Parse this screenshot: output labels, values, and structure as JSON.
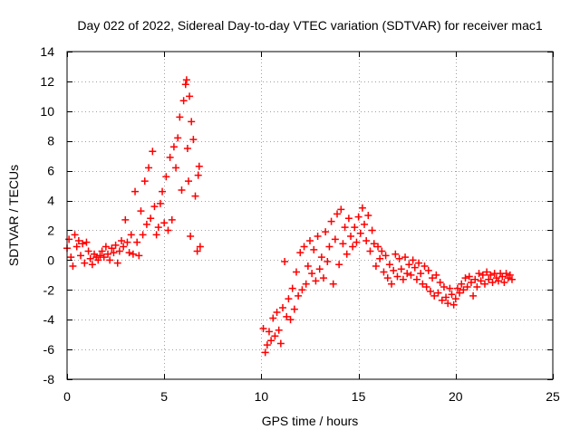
{
  "chart_data": {
    "type": "scatter",
    "title": "Day 022 of 2022, Sidereal Day-to-day VTEC variation (SDTVAR) for receiver mac1",
    "xlabel": "GPS time / hours",
    "ylabel": "SDTVAR / TECUs",
    "xlim": [
      0,
      25
    ],
    "ylim": [
      -8,
      14
    ],
    "xticks": [
      "0",
      "5",
      "10",
      "15",
      "20",
      "25"
    ],
    "xtick_values": [
      0,
      5,
      10,
      15,
      20,
      25
    ],
    "yticks": [
      "-8",
      "-6",
      "-4",
      "-2",
      "0",
      "2",
      "4",
      "6",
      "8",
      "10",
      "12",
      "14"
    ],
    "ytick_values": [
      -8,
      -6,
      -4,
      -2,
      0,
      2,
      4,
      6,
      8,
      10,
      12,
      14
    ],
    "grid": true,
    "marker": "plus",
    "series": [
      {
        "name": "SDTVAR",
        "color": "#ff0000",
        "points": [
          [
            0.0,
            0.8
          ],
          [
            0.1,
            1.4
          ],
          [
            0.2,
            0.2
          ],
          [
            0.3,
            -0.4
          ],
          [
            0.4,
            1.7
          ],
          [
            0.5,
            0.9
          ],
          [
            0.6,
            1.3
          ],
          [
            0.7,
            0.3
          ],
          [
            0.8,
            1.1
          ],
          [
            0.9,
            -0.2
          ],
          [
            1.0,
            1.2
          ],
          [
            1.1,
            0.6
          ],
          [
            1.2,
            0.1
          ],
          [
            1.3,
            -0.3
          ],
          [
            1.4,
            0.4
          ],
          [
            1.5,
            0.2
          ],
          [
            1.6,
            0.0
          ],
          [
            1.7,
            0.3
          ],
          [
            1.8,
            0.6
          ],
          [
            1.9,
            0.2
          ],
          [
            2.0,
            0.9
          ],
          [
            2.1,
            0.4
          ],
          [
            2.2,
            0.0
          ],
          [
            2.3,
            0.8
          ],
          [
            2.4,
            0.5
          ],
          [
            2.5,
            1.0
          ],
          [
            2.6,
            -0.2
          ],
          [
            2.7,
            0.6
          ],
          [
            2.8,
            1.3
          ],
          [
            2.9,
            0.9
          ],
          [
            3.0,
            2.7
          ],
          [
            3.1,
            1.2
          ],
          [
            3.2,
            0.5
          ],
          [
            3.3,
            1.7
          ],
          [
            3.4,
            0.4
          ],
          [
            3.5,
            4.6
          ],
          [
            3.6,
            1.2
          ],
          [
            3.7,
            0.3
          ],
          [
            3.8,
            3.3
          ],
          [
            3.9,
            1.7
          ],
          [
            4.0,
            5.3
          ],
          [
            4.1,
            2.4
          ],
          [
            4.2,
            6.2
          ],
          [
            4.3,
            2.8
          ],
          [
            4.4,
            7.3
          ],
          [
            4.5,
            3.6
          ],
          [
            4.6,
            1.7
          ],
          [
            4.7,
            2.2
          ],
          [
            4.8,
            3.8
          ],
          [
            4.9,
            4.6
          ],
          [
            5.0,
            2.5
          ],
          [
            5.1,
            5.6
          ],
          [
            5.2,
            2.0
          ],
          [
            5.3,
            6.9
          ],
          [
            5.4,
            2.7
          ],
          [
            5.5,
            7.6
          ],
          [
            5.6,
            6.2
          ],
          [
            5.7,
            8.2
          ],
          [
            5.8,
            9.6
          ],
          [
            5.9,
            4.7
          ],
          [
            6.0,
            10.7
          ],
          [
            6.1,
            11.8
          ],
          [
            6.15,
            12.1
          ],
          [
            6.2,
            7.5
          ],
          [
            6.25,
            5.3
          ],
          [
            6.3,
            11.0
          ],
          [
            6.35,
            1.6
          ],
          [
            6.4,
            9.3
          ],
          [
            6.5,
            8.1
          ],
          [
            6.6,
            4.3
          ],
          [
            6.7,
            0.6
          ],
          [
            6.75,
            5.7
          ],
          [
            6.8,
            6.3
          ],
          [
            6.85,
            0.9
          ],
          [
            10.1,
            -4.6
          ],
          [
            10.2,
            -6.2
          ],
          [
            10.3,
            -5.7
          ],
          [
            10.4,
            -4.8
          ],
          [
            10.5,
            -5.4
          ],
          [
            10.6,
            -3.9
          ],
          [
            10.7,
            -5.1
          ],
          [
            10.8,
            -3.5
          ],
          [
            10.9,
            -4.7
          ],
          [
            11.0,
            -5.6
          ],
          [
            11.1,
            -3.2
          ],
          [
            11.2,
            -0.1
          ],
          [
            11.3,
            -3.8
          ],
          [
            11.4,
            -2.6
          ],
          [
            11.5,
            -4.0
          ],
          [
            11.6,
            -1.9
          ],
          [
            11.7,
            -3.3
          ],
          [
            11.8,
            -0.8
          ],
          [
            11.9,
            -2.4
          ],
          [
            12.0,
            0.5
          ],
          [
            12.1,
            -2.0
          ],
          [
            12.2,
            0.9
          ],
          [
            12.3,
            -1.6
          ],
          [
            12.4,
            -0.4
          ],
          [
            12.5,
            1.3
          ],
          [
            12.6,
            -0.9
          ],
          [
            12.7,
            0.7
          ],
          [
            12.8,
            -1.4
          ],
          [
            12.9,
            1.6
          ],
          [
            13.0,
            -0.6
          ],
          [
            13.1,
            0.2
          ],
          [
            13.2,
            -1.2
          ],
          [
            13.3,
            1.9
          ],
          [
            13.4,
            -0.1
          ],
          [
            13.5,
            0.9
          ],
          [
            13.6,
            2.6
          ],
          [
            13.7,
            -1.6
          ],
          [
            13.8,
            1.4
          ],
          [
            13.9,
            3.1
          ],
          [
            14.0,
            -0.3
          ],
          [
            14.1,
            3.4
          ],
          [
            14.2,
            1.1
          ],
          [
            14.3,
            2.2
          ],
          [
            14.4,
            0.4
          ],
          [
            14.5,
            2.8
          ],
          [
            14.6,
            1.6
          ],
          [
            14.7,
            0.9
          ],
          [
            14.8,
            2.2
          ],
          [
            14.9,
            1.2
          ],
          [
            15.0,
            2.9
          ],
          [
            15.1,
            1.8
          ],
          [
            15.2,
            3.5
          ],
          [
            15.3,
            2.4
          ],
          [
            15.4,
            1.3
          ],
          [
            15.5,
            3.0
          ],
          [
            15.6,
            0.6
          ],
          [
            15.7,
            2.0
          ],
          [
            15.8,
            1.1
          ],
          [
            15.9,
            -0.4
          ],
          [
            16.0,
            0.9
          ],
          [
            16.1,
            0.1
          ],
          [
            16.2,
            0.6
          ],
          [
            16.3,
            -0.8
          ],
          [
            16.4,
            0.3
          ],
          [
            16.5,
            -1.2
          ],
          [
            16.6,
            -0.3
          ],
          [
            16.7,
            -1.6
          ],
          [
            16.8,
            -0.7
          ],
          [
            16.9,
            0.4
          ],
          [
            17.0,
            -1.1
          ],
          [
            17.1,
            0.1
          ],
          [
            17.2,
            -0.6
          ],
          [
            17.3,
            -1.3
          ],
          [
            17.4,
            0.2
          ],
          [
            17.5,
            -0.9
          ],
          [
            17.6,
            -0.3
          ],
          [
            17.7,
            -1.0
          ],
          [
            17.8,
            0.0
          ],
          [
            17.9,
            -0.5
          ],
          [
            18.0,
            -1.3
          ],
          [
            18.1,
            -0.2
          ],
          [
            18.2,
            -0.9
          ],
          [
            18.3,
            -1.6
          ],
          [
            18.4,
            -0.4
          ],
          [
            18.5,
            -1.8
          ],
          [
            18.6,
            -0.7
          ],
          [
            18.7,
            -2.1
          ],
          [
            18.8,
            -1.2
          ],
          [
            18.9,
            -2.4
          ],
          [
            19.0,
            -1.0
          ],
          [
            19.1,
            -2.2
          ],
          [
            19.2,
            -1.5
          ],
          [
            19.3,
            -2.7
          ],
          [
            19.4,
            -1.8
          ],
          [
            19.5,
            -2.5
          ],
          [
            19.6,
            -2.9
          ],
          [
            19.7,
            -1.9
          ],
          [
            19.8,
            -2.3
          ],
          [
            19.9,
            -3.0
          ],
          [
            20.0,
            -2.6
          ],
          [
            20.1,
            -1.9
          ],
          [
            20.2,
            -2.2
          ],
          [
            20.3,
            -1.6
          ],
          [
            20.4,
            -2.0
          ],
          [
            20.5,
            -1.2
          ],
          [
            20.6,
            -1.8
          ],
          [
            20.7,
            -1.1
          ],
          [
            20.8,
            -1.5
          ],
          [
            20.9,
            -2.4
          ],
          [
            21.0,
            -1.3
          ],
          [
            21.1,
            -1.8
          ],
          [
            21.2,
            -0.9
          ],
          [
            21.3,
            -1.4
          ],
          [
            21.4,
            -1.0
          ],
          [
            21.5,
            -1.6
          ],
          [
            21.6,
            -0.8
          ],
          [
            21.7,
            -1.3
          ],
          [
            21.8,
            -1.0
          ],
          [
            21.9,
            -1.5
          ],
          [
            22.0,
            -0.9
          ],
          [
            22.1,
            -1.2
          ],
          [
            22.2,
            -1.4
          ],
          [
            22.3,
            -0.9
          ],
          [
            22.4,
            -1.1
          ],
          [
            22.5,
            -1.5
          ],
          [
            22.6,
            -0.9
          ],
          [
            22.7,
            -1.2
          ],
          [
            22.8,
            -1.0
          ],
          [
            22.9,
            -1.3
          ]
        ]
      }
    ]
  }
}
